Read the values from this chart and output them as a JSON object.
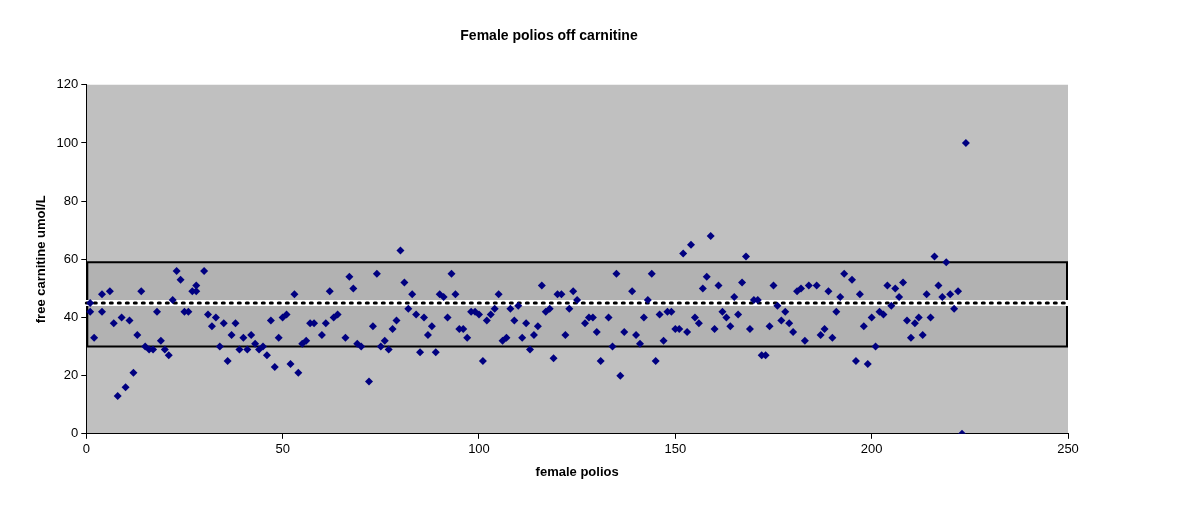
{
  "chart_data": {
    "type": "scatter",
    "title": "Female polios off carnitine",
    "xlabel": "female polios",
    "ylabel": "free carnitine umol/L",
    "xlim": [
      0,
      250
    ],
    "xticks": [
      0,
      50,
      100,
      150,
      200,
      250
    ],
    "ylim": [
      0,
      120
    ],
    "yticks": [
      0,
      20,
      40,
      60,
      80,
      100,
      120
    ],
    "grid": false,
    "legend": false,
    "marker": "diamond",
    "ref_lines": [
      {
        "axis": "y",
        "value": 45,
        "label": null,
        "color": "#ffffff",
        "line_style": "solid"
      },
      {
        "axis": "y",
        "value": 45,
        "label": null,
        "color": "#000000",
        "line_style": "dotted"
      }
    ],
    "bands": [
      {
        "axis": "y",
        "from": 30,
        "to": 59,
        "label": null,
        "color": "#000000"
      }
    ],
    "series": [
      {
        "color": "#000080",
        "x": [
          1,
          1,
          2,
          4,
          4,
          6,
          7,
          8,
          9,
          10,
          11,
          12,
          13,
          14,
          15,
          16,
          17,
          18,
          19,
          20,
          21,
          22,
          23,
          24,
          25,
          26,
          27,
          28,
          28,
          30,
          31,
          32,
          33,
          34,
          35,
          36,
          37,
          38,
          39,
          40,
          41,
          42,
          43,
          44,
          45,
          46,
          47,
          48,
          49,
          50,
          51,
          52,
          53,
          54,
          55,
          56,
          57,
          58,
          60,
          61,
          62,
          63,
          64,
          66,
          67,
          68,
          69,
          70,
          72,
          73,
          74,
          75,
          76,
          77,
          78,
          79,
          80,
          81,
          82,
          83,
          84,
          85,
          86,
          87,
          88,
          89,
          90,
          91,
          92,
          93,
          94,
          95,
          96,
          97,
          98,
          99,
          100,
          101,
          102,
          103,
          104,
          105,
          106,
          107,
          108,
          109,
          110,
          111,
          112,
          113,
          114,
          115,
          116,
          117,
          118,
          119,
          120,
          121,
          122,
          123,
          124,
          125,
          127,
          128,
          129,
          130,
          131,
          133,
          134,
          135,
          136,
          137,
          139,
          140,
          141,
          142,
          143,
          144,
          145,
          146,
          147,
          148,
          149,
          150,
          151,
          152,
          153,
          154,
          155,
          156,
          157,
          158,
          159,
          160,
          161,
          162,
          163,
          164,
          165,
          166,
          167,
          168,
          169,
          170,
          171,
          172,
          173,
          174,
          175,
          176,
          177,
          178,
          179,
          180,
          181,
          182,
          183,
          184,
          186,
          187,
          188,
          189,
          190,
          191,
          192,
          193,
          195,
          196,
          197,
          198,
          199,
          200,
          201,
          202,
          203,
          204,
          205,
          206,
          207,
          208,
          209,
          210,
          211,
          212,
          213,
          214,
          215,
          216,
          217,
          218,
          219,
          220,
          221,
          222,
          223,
          224
        ],
        "values": [
          45,
          42,
          33,
          48,
          42,
          49,
          38,
          13,
          40,
          16,
          39,
          21,
          34,
          49,
          30,
          29,
          29,
          42,
          32,
          29,
          27,
          46,
          56,
          53,
          42,
          42,
          49,
          49,
          51,
          56,
          41,
          37,
          40,
          30,
          38,
          25,
          34,
          38,
          29,
          33,
          29,
          34,
          31,
          29,
          30,
          27,
          39,
          23,
          33,
          40,
          41,
          24,
          48,
          21,
          31,
          32,
          38,
          38,
          34,
          38,
          49,
          40,
          41,
          33,
          54,
          50,
          31,
          30,
          18,
          37,
          55,
          30,
          32,
          29,
          36,
          39,
          63,
          52,
          43,
          48,
          41,
          28,
          40,
          34,
          37,
          28,
          48,
          47,
          40,
          55,
          48,
          36,
          36,
          33,
          42,
          42,
          41,
          25,
          39,
          41,
          43,
          48,
          32,
          33,
          43,
          39,
          44,
          33,
          38,
          29,
          34,
          37,
          51,
          42,
          43,
          26,
          48,
          48,
          34,
          43,
          49,
          46,
          38,
          40,
          40,
          35,
          25,
          40,
          30,
          55,
          20,
          35,
          49,
          34,
          31,
          40,
          46,
          55,
          25,
          41,
          32,
          42,
          42,
          36,
          36,
          62,
          35,
          65,
          40,
          38,
          50,
          54,
          68,
          36,
          51,
          42,
          40,
          37,
          47,
          41,
          52,
          61,
          36,
          46,
          46,
          27,
          27,
          37,
          51,
          44,
          39,
          42,
          38,
          35,
          49,
          50,
          32,
          51,
          51,
          34,
          36,
          49,
          33,
          42,
          47,
          55,
          53,
          25,
          48,
          37,
          24,
          40,
          30,
          42,
          41,
          51,
          44,
          50,
          47,
          52,
          39,
          33,
          38,
          40,
          34,
          48,
          40,
          61,
          51,
          47,
          59,
          48,
          43,
          49,
          0,
          100
        ]
      }
    ]
  }
}
